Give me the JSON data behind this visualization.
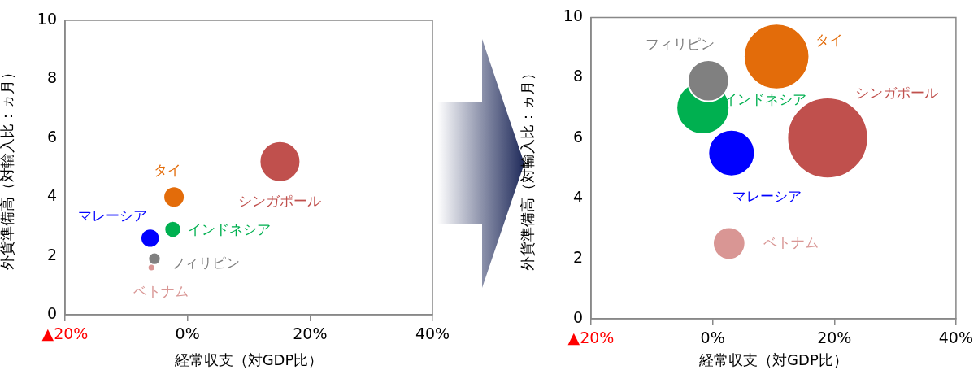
{
  "chart_data": [
    {
      "type": "bubble",
      "xlabel": "経常収支（対GDP比）",
      "ylabel": "外貨準備高（対輸入比：ヵ月）",
      "xlim": [
        -20,
        40
      ],
      "xticks": [
        {
          "value": -20,
          "label": "▲20%"
        },
        {
          "value": 0,
          "label": "0%"
        },
        {
          "value": 20,
          "label": "20%"
        },
        {
          "value": 40,
          "label": "40%"
        }
      ],
      "ylim": [
        0,
        10
      ],
      "yticks": [
        0,
        2,
        4,
        6,
        8,
        10
      ],
      "grid": false,
      "legend": false,
      "series": [
        {
          "name": "タイ",
          "color": "#e36c0a",
          "x": [
            -2.2
          ],
          "values": [
            4.0
          ],
          "sizes": [
            0.27
          ]
        },
        {
          "name": "シンガポール",
          "color": "#c0504d",
          "x": [
            15.1
          ],
          "values": [
            5.2
          ],
          "sizes": [
            1
          ]
        },
        {
          "name": "マレーシア",
          "color": "#0000ff",
          "x": [
            -6.1
          ],
          "values": [
            2.6
          ],
          "sizes": [
            0.22
          ]
        },
        {
          "name": "インドネシア",
          "color": "#00b050",
          "x": [
            -2.4
          ],
          "values": [
            2.9
          ],
          "sizes": [
            0.17
          ]
        },
        {
          "name": "フィリピン",
          "color": "#808080",
          "x": [
            -5.4
          ],
          "values": [
            1.9
          ],
          "sizes": [
            0.07
          ]
        },
        {
          "name": "ベトナム",
          "color": "#d99694",
          "x": [
            -5.9
          ],
          "values": [
            1.6
          ],
          "sizes": [
            0.02
          ]
        }
      ]
    },
    {
      "type": "bubble",
      "xlabel": "経常収支（対GDP比）",
      "ylabel": "外貨準備高（対輸入比：ヵ月）",
      "xlim": [
        -20,
        40
      ],
      "xticks": [
        {
          "value": -20,
          "label": "▲20%"
        },
        {
          "value": 0,
          "label": "0%"
        },
        {
          "value": 20,
          "label": "20%"
        },
        {
          "value": 40,
          "label": "40%"
        }
      ],
      "ylim": [
        0,
        10
      ],
      "yticks": [
        0,
        2,
        4,
        6,
        8,
        10
      ],
      "grid": false,
      "legend": false,
      "series": [
        {
          "name": "タイ",
          "color": "#e36c0a",
          "x": [
            10.5
          ],
          "values": [
            8.7
          ],
          "sizes": [
            0.66
          ]
        },
        {
          "name": "シンガポール",
          "color": "#c0504d",
          "x": [
            18.9
          ],
          "values": [
            6.0
          ],
          "sizes": [
            1
          ]
        },
        {
          "name": "マレーシア",
          "color": "#0000ff",
          "x": [
            3.1
          ],
          "values": [
            5.5
          ],
          "sizes": [
            0.33
          ]
        },
        {
          "name": "インドネシア",
          "color": "#00b050",
          "x": [
            -1.6
          ],
          "values": [
            7.0
          ],
          "sizes": [
            0.43
          ]
        },
        {
          "name": "フィリピン",
          "color": "#808080",
          "x": [
            -0.7
          ],
          "values": [
            7.9
          ],
          "sizes": [
            0.26
          ]
        },
        {
          "name": "ベトナム",
          "color": "#d99694",
          "x": [
            2.7
          ],
          "values": [
            2.5
          ],
          "sizes": [
            0.16
          ]
        }
      ]
    }
  ]
}
